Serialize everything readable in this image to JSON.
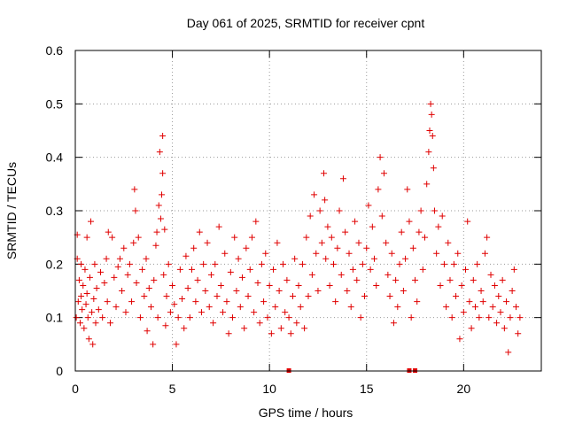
{
  "chart_data": {
    "type": "scatter",
    "title": "Day 061 of 2025, SRMTID for receiver cpnt",
    "xlabel": "GPS time / hours",
    "ylabel": "SRMTID / TECUs",
    "xlim": [
      0,
      24
    ],
    "ylim": [
      0,
      0.6
    ],
    "x_ticks": [
      0,
      5,
      10,
      15,
      20
    ],
    "y_ticks": [
      0,
      0.1,
      0.2,
      0.3,
      0.4,
      0.5,
      0.6
    ],
    "grid": true,
    "legend": "none",
    "marker": "+",
    "color": "#e00000",
    "series": [
      {
        "name": "SRMTID",
        "points": [
          [
            0.05,
            0.1
          ],
          [
            0.1,
            0.21
          ],
          [
            0.1,
            0.255
          ],
          [
            0.15,
            0.13
          ],
          [
            0.2,
            0.17
          ],
          [
            0.25,
            0.09
          ],
          [
            0.3,
            0.14
          ],
          [
            0.3,
            0.2
          ],
          [
            0.35,
            0.115
          ],
          [
            0.4,
            0.16
          ],
          [
            0.45,
            0.08
          ],
          [
            0.5,
            0.19
          ],
          [
            0.55,
            0.125
          ],
          [
            0.6,
            0.145
          ],
          [
            0.6,
            0.25
          ],
          [
            0.65,
            0.1
          ],
          [
            0.7,
            0.06
          ],
          [
            0.75,
            0.175
          ],
          [
            0.8,
            0.28
          ],
          [
            0.85,
            0.11
          ],
          [
            0.9,
            0.05
          ],
          [
            0.95,
            0.135
          ],
          [
            1.0,
            0.2
          ],
          [
            1.05,
            0.09
          ],
          [
            1.1,
            0.155
          ],
          [
            1.2,
            0.115
          ],
          [
            1.3,
            0.185
          ],
          [
            1.4,
            0.1
          ],
          [
            1.5,
            0.165
          ],
          [
            1.6,
            0.21
          ],
          [
            1.65,
            0.13
          ],
          [
            1.7,
            0.26
          ],
          [
            1.8,
            0.09
          ],
          [
            1.9,
            0.25
          ],
          [
            2.0,
            0.175
          ],
          [
            2.1,
            0.12
          ],
          [
            2.2,
            0.195
          ],
          [
            2.3,
            0.21
          ],
          [
            2.4,
            0.15
          ],
          [
            2.5,
            0.23
          ],
          [
            2.6,
            0.11
          ],
          [
            2.7,
            0.18
          ],
          [
            2.8,
            0.2
          ],
          [
            2.9,
            0.13
          ],
          [
            3.0,
            0.24
          ],
          [
            3.05,
            0.34
          ],
          [
            3.1,
            0.3
          ],
          [
            3.15,
            0.165
          ],
          [
            3.25,
            0.25
          ],
          [
            3.35,
            0.1
          ],
          [
            3.45,
            0.19
          ],
          [
            3.55,
            0.14
          ],
          [
            3.65,
            0.21
          ],
          [
            3.7,
            0.075
          ],
          [
            3.8,
            0.155
          ],
          [
            3.9,
            0.12
          ],
          [
            4.0,
            0.05
          ],
          [
            4.05,
            0.17
          ],
          [
            4.15,
            0.235
          ],
          [
            4.2,
            0.26
          ],
          [
            4.25,
            0.1
          ],
          [
            4.3,
            0.31
          ],
          [
            4.35,
            0.41
          ],
          [
            4.4,
            0.285
          ],
          [
            4.45,
            0.33
          ],
          [
            4.5,
            0.44
          ],
          [
            4.5,
            0.37
          ],
          [
            4.55,
            0.18
          ],
          [
            4.6,
            0.265
          ],
          [
            4.65,
            0.085
          ],
          [
            4.7,
            0.14
          ],
          [
            4.8,
            0.2
          ],
          [
            4.9,
            0.11
          ],
          [
            5.0,
            0.16
          ],
          [
            5.1,
            0.125
          ],
          [
            5.2,
            0.05
          ],
          [
            5.3,
            0.1
          ],
          [
            5.4,
            0.19
          ],
          [
            5.5,
            0.135
          ],
          [
            5.6,
            0.08
          ],
          [
            5.7,
            0.215
          ],
          [
            5.8,
            0.155
          ],
          [
            5.9,
            0.1
          ],
          [
            6.0,
            0.19
          ],
          [
            6.1,
            0.23
          ],
          [
            6.2,
            0.13
          ],
          [
            6.3,
            0.17
          ],
          [
            6.4,
            0.26
          ],
          [
            6.5,
            0.11
          ],
          [
            6.6,
            0.2
          ],
          [
            6.7,
            0.15
          ],
          [
            6.8,
            0.24
          ],
          [
            6.9,
            0.12
          ],
          [
            7.0,
            0.18
          ],
          [
            7.1,
            0.09
          ],
          [
            7.2,
            0.2
          ],
          [
            7.3,
            0.14
          ],
          [
            7.4,
            0.27
          ],
          [
            7.5,
            0.16
          ],
          [
            7.6,
            0.11
          ],
          [
            7.7,
            0.22
          ],
          [
            7.8,
            0.13
          ],
          [
            7.9,
            0.07
          ],
          [
            8.0,
            0.185
          ],
          [
            8.1,
            0.1
          ],
          [
            8.2,
            0.25
          ],
          [
            8.3,
            0.15
          ],
          [
            8.4,
            0.21
          ],
          [
            8.5,
            0.12
          ],
          [
            8.6,
            0.175
          ],
          [
            8.7,
            0.08
          ],
          [
            8.8,
            0.23
          ],
          [
            8.9,
            0.14
          ],
          [
            9.0,
            0.19
          ],
          [
            9.1,
            0.25
          ],
          [
            9.2,
            0.11
          ],
          [
            9.3,
            0.28
          ],
          [
            9.4,
            0.165
          ],
          [
            9.5,
            0.09
          ],
          [
            9.6,
            0.2
          ],
          [
            9.7,
            0.13
          ],
          [
            9.8,
            0.22
          ],
          [
            9.9,
            0.1
          ],
          [
            10.0,
            0.16
          ],
          [
            10.1,
            0.07
          ],
          [
            10.2,
            0.19
          ],
          [
            10.3,
            0.12
          ],
          [
            10.4,
            0.24
          ],
          [
            10.5,
            0.15
          ],
          [
            10.6,
            0.08
          ],
          [
            10.7,
            0.2
          ],
          [
            10.8,
            0.11
          ],
          [
            10.9,
            0.17
          ],
          [
            11.0,
            0.1
          ],
          [
            11.1,
            0.07
          ],
          [
            11.2,
            0.14
          ],
          [
            11.3,
            0.21
          ],
          [
            11.4,
            0.09
          ],
          [
            11.5,
            0.16
          ],
          [
            11.6,
            0.12
          ],
          [
            11.7,
            0.2
          ],
          [
            11.8,
            0.08
          ],
          [
            11.9,
            0.25
          ],
          [
            12.0,
            0.14
          ],
          [
            12.1,
            0.29
          ],
          [
            12.2,
            0.18
          ],
          [
            12.3,
            0.33
          ],
          [
            12.4,
            0.22
          ],
          [
            12.5,
            0.15
          ],
          [
            12.6,
            0.3
          ],
          [
            12.7,
            0.24
          ],
          [
            12.8,
            0.37
          ],
          [
            12.85,
            0.32
          ],
          [
            12.9,
            0.21
          ],
          [
            13.0,
            0.27
          ],
          [
            13.1,
            0.16
          ],
          [
            13.2,
            0.25
          ],
          [
            13.3,
            0.2
          ],
          [
            13.4,
            0.13
          ],
          [
            13.5,
            0.23
          ],
          [
            13.6,
            0.3
          ],
          [
            13.7,
            0.18
          ],
          [
            13.8,
            0.36
          ],
          [
            13.9,
            0.26
          ],
          [
            14.0,
            0.15
          ],
          [
            14.1,
            0.22
          ],
          [
            14.2,
            0.12
          ],
          [
            14.3,
            0.19
          ],
          [
            14.4,
            0.28
          ],
          [
            14.5,
            0.17
          ],
          [
            14.6,
            0.24
          ],
          [
            14.7,
            0.1
          ],
          [
            14.8,
            0.2
          ],
          [
            14.9,
            0.14
          ],
          [
            15.0,
            0.23
          ],
          [
            15.1,
            0.31
          ],
          [
            15.2,
            0.19
          ],
          [
            15.3,
            0.27
          ],
          [
            15.4,
            0.21
          ],
          [
            15.5,
            0.16
          ],
          [
            15.6,
            0.34
          ],
          [
            15.7,
            0.4
          ],
          [
            15.8,
            0.29
          ],
          [
            15.9,
            0.37
          ],
          [
            16.0,
            0.24
          ],
          [
            16.1,
            0.18
          ],
          [
            16.2,
            0.14
          ],
          [
            16.3,
            0.22
          ],
          [
            16.4,
            0.09
          ],
          [
            16.5,
            0.17
          ],
          [
            16.6,
            0.12
          ],
          [
            16.7,
            0.2
          ],
          [
            16.8,
            0.26
          ],
          [
            16.9,
            0.15
          ],
          [
            17.0,
            0.21
          ],
          [
            17.1,
            0.34
          ],
          [
            17.2,
            0.28
          ],
          [
            17.3,
            0.1
          ],
          [
            17.4,
            0.23
          ],
          [
            17.5,
            0.17
          ],
          [
            17.6,
            0.13
          ],
          [
            17.7,
            0.26
          ],
          [
            17.8,
            0.3
          ],
          [
            17.9,
            0.19
          ],
          [
            18.0,
            0.25
          ],
          [
            18.1,
            0.35
          ],
          [
            18.2,
            0.41
          ],
          [
            18.25,
            0.45
          ],
          [
            18.3,
            0.5
          ],
          [
            18.35,
            0.48
          ],
          [
            18.4,
            0.44
          ],
          [
            18.45,
            0.38
          ],
          [
            18.5,
            0.3
          ],
          [
            18.6,
            0.22
          ],
          [
            18.7,
            0.27
          ],
          [
            18.8,
            0.16
          ],
          [
            18.9,
            0.29
          ],
          [
            19.0,
            0.2
          ],
          [
            19.1,
            0.12
          ],
          [
            19.2,
            0.24
          ],
          [
            19.3,
            0.17
          ],
          [
            19.4,
            0.1
          ],
          [
            19.5,
            0.2
          ],
          [
            19.6,
            0.14
          ],
          [
            19.7,
            0.22
          ],
          [
            19.8,
            0.06
          ],
          [
            19.9,
            0.16
          ],
          [
            20.0,
            0.11
          ],
          [
            20.1,
            0.19
          ],
          [
            20.2,
            0.28
          ],
          [
            20.3,
            0.13
          ],
          [
            20.4,
            0.08
          ],
          [
            20.5,
            0.17
          ],
          [
            20.6,
            0.12
          ],
          [
            20.7,
            0.2
          ],
          [
            20.8,
            0.1
          ],
          [
            20.9,
            0.15
          ],
          [
            21.0,
            0.13
          ],
          [
            21.1,
            0.22
          ],
          [
            21.2,
            0.25
          ],
          [
            21.3,
            0.1
          ],
          [
            21.4,
            0.18
          ],
          [
            21.5,
            0.12
          ],
          [
            21.6,
            0.16
          ],
          [
            21.7,
            0.09
          ],
          [
            21.8,
            0.14
          ],
          [
            21.9,
            0.11
          ],
          [
            22.0,
            0.17
          ],
          [
            22.1,
            0.08
          ],
          [
            22.2,
            0.13
          ],
          [
            22.3,
            0.035
          ],
          [
            22.4,
            0.1
          ],
          [
            22.5,
            0.15
          ],
          [
            22.6,
            0.19
          ],
          [
            22.7,
            0.12
          ],
          [
            22.8,
            0.07
          ],
          [
            22.9,
            0.1
          ]
        ]
      }
    ],
    "axis_markers": [
      11.0,
      17.2,
      17.5
    ]
  }
}
